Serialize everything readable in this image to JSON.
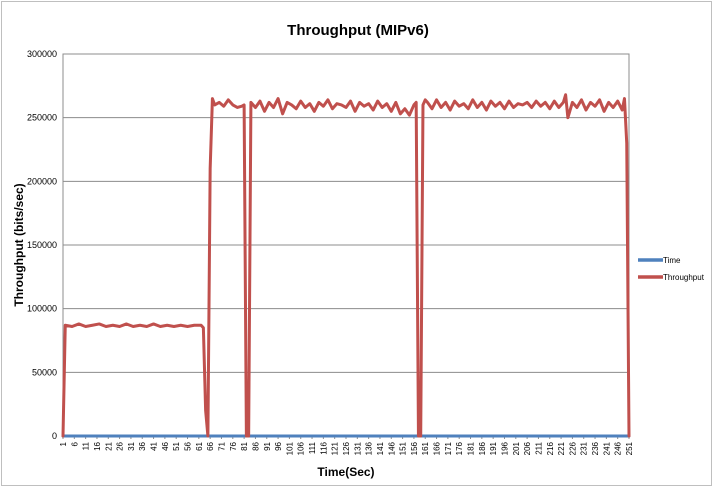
{
  "chart_data": {
    "type": "line",
    "title": "Throughput (MIPv6)",
    "xlabel": "Time(Sec)",
    "ylabel": "Throughput (bits/sec)",
    "ylim": [
      0,
      300000
    ],
    "yticks": [
      "0",
      "50000",
      "100000",
      "150000",
      "200000",
      "250000",
      "300000"
    ],
    "xticks": [
      "1",
      "6",
      "11",
      "16",
      "21",
      "26",
      "31",
      "36",
      "41",
      "46",
      "51",
      "56",
      "61",
      "66",
      "71",
      "76",
      "81",
      "86",
      "91",
      "96",
      "101",
      "106",
      "111",
      "116",
      "121",
      "126",
      "131",
      "136",
      "141",
      "146",
      "151",
      "156",
      "161",
      "166",
      "171",
      "176",
      "181",
      "186",
      "191",
      "196",
      "201",
      "206",
      "211",
      "216",
      "221",
      "226",
      "231",
      "236",
      "241",
      "246",
      "251"
    ],
    "grid": true,
    "legend_position": "right",
    "series": [
      {
        "name": "Time",
        "color": "#4f81bd",
        "x": [
          1,
          251
        ],
        "y": [
          0,
          0
        ]
      },
      {
        "name": "Throughput",
        "color": "#c0504d",
        "x": [
          1,
          2,
          5,
          8,
          11,
          14,
          17,
          20,
          23,
          26,
          29,
          32,
          35,
          38,
          41,
          44,
          47,
          50,
          53,
          56,
          59,
          62,
          63,
          64,
          65,
          66,
          67,
          68,
          70,
          72,
          74,
          76,
          78,
          80,
          81,
          82,
          83,
          84,
          86,
          88,
          90,
          92,
          94,
          96,
          98,
          100,
          102,
          104,
          106,
          108,
          110,
          112,
          114,
          116,
          118,
          120,
          122,
          124,
          126,
          128,
          130,
          132,
          134,
          136,
          138,
          140,
          142,
          144,
          146,
          148,
          150,
          152,
          154,
          156,
          157,
          158,
          159,
          160,
          161,
          162,
          164,
          166,
          168,
          170,
          172,
          174,
          176,
          178,
          180,
          182,
          184,
          186,
          188,
          190,
          192,
          194,
          196,
          198,
          200,
          202,
          204,
          206,
          208,
          210,
          212,
          214,
          216,
          218,
          220,
          222,
          223,
          224,
          226,
          228,
          230,
          232,
          234,
          236,
          238,
          240,
          242,
          244,
          246,
          248,
          249,
          250,
          251
        ],
        "y": [
          0,
          87000,
          86000,
          88000,
          86000,
          87000,
          88000,
          86000,
          87000,
          86000,
          88000,
          86000,
          87000,
          86000,
          88000,
          86000,
          87000,
          86000,
          87000,
          86000,
          87000,
          87000,
          85000,
          20000,
          0,
          210000,
          265000,
          260000,
          262000,
          259000,
          264000,
          260000,
          258000,
          259000,
          260000,
          0,
          0,
          262000,
          258000,
          263000,
          255000,
          262000,
          258000,
          265000,
          253000,
          262000,
          260000,
          257000,
          263000,
          258000,
          261000,
          255000,
          262000,
          259000,
          264000,
          257000,
          261000,
          260000,
          258000,
          263000,
          255000,
          262000,
          259000,
          261000,
          256000,
          263000,
          258000,
          261000,
          255000,
          262000,
          253000,
          257000,
          252000,
          260000,
          262000,
          0,
          0,
          260000,
          264000,
          262000,
          257000,
          264000,
          258000,
          262000,
          256000,
          263000,
          259000,
          261000,
          257000,
          264000,
          258000,
          262000,
          256000,
          263000,
          259000,
          262000,
          257000,
          263000,
          258000,
          261000,
          260000,
          262000,
          258000,
          263000,
          259000,
          262000,
          257000,
          263000,
          258000,
          262000,
          268000,
          250000,
          262000,
          258000,
          264000,
          256000,
          262000,
          259000,
          264000,
          255000,
          262000,
          258000,
          263000,
          256000,
          265000,
          230000,
          0
        ]
      }
    ]
  }
}
